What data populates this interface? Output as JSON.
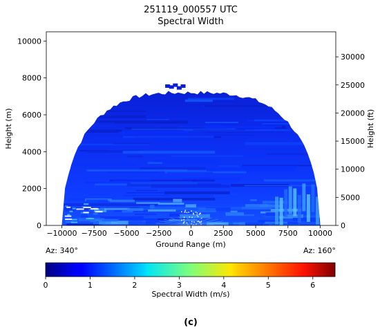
{
  "chart_data": {
    "type": "heatmap",
    "title": "251119_000557 UTC",
    "subtitle": "Spectral Width",
    "xlabel": "Ground Range (m)",
    "ylabel_left": "Height (m)",
    "ylabel_right": "Height (ft)",
    "xlim": [
      -11200,
      11200
    ],
    "ylim_m": [
      0,
      10500
    ],
    "ylim_ft": [
      0,
      34449
    ],
    "x_ticks": [
      "−10000",
      "−7500",
      "−5000",
      "−2500",
      "0",
      "2500",
      "5000",
      "7500",
      "10000"
    ],
    "x_tick_values": [
      -10000,
      -7500,
      -5000,
      -2500,
      0,
      2500,
      5000,
      7500,
      10000
    ],
    "y_ticks_m": [
      0,
      2000,
      4000,
      6000,
      8000,
      10000
    ],
    "y_ticks_ft": [
      0,
      5000,
      10000,
      15000,
      20000,
      25000,
      30000
    ],
    "az_left": "Az: 340°",
    "az_right": "Az: 160°",
    "echo_top_m": 7200,
    "colorbar": {
      "label": "Spectral Width (m/s)",
      "range": [
        0,
        6.5
      ],
      "ticks": [
        0,
        1,
        2,
        3,
        4,
        5,
        6
      ],
      "colormap": "jet"
    },
    "dominant_value_range_ms": [
      0.5,
      1.2
    ],
    "grid": false
  },
  "caption": "(c)"
}
